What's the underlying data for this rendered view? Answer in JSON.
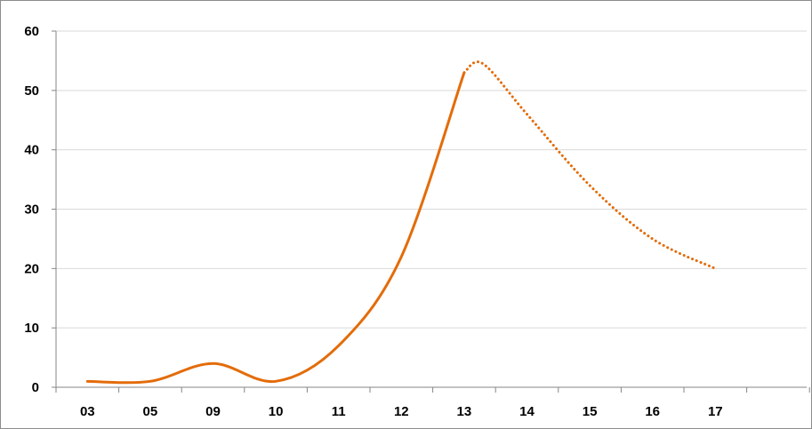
{
  "chart_data": {
    "type": "line",
    "categories": [
      "03",
      "05",
      "09",
      "10",
      "11",
      "12",
      "13",
      "14",
      "15",
      "16",
      "17"
    ],
    "series": [
      {
        "style": "solid",
        "color": "#E36C0A",
        "points": [
          {
            "x": "03",
            "y": 1
          },
          {
            "x": "05",
            "y": 1
          },
          {
            "x": "09",
            "y": 4
          },
          {
            "x": "10",
            "y": 1
          },
          {
            "x": "11",
            "y": 7
          },
          {
            "x": "12",
            "y": 22
          },
          {
            "x": "13",
            "y": 53
          }
        ]
      },
      {
        "style": "dotted",
        "color": "#E36C0A",
        "points": [
          {
            "x": "13",
            "y": 53
          },
          {
            "x": "13.3",
            "y": 54.5
          },
          {
            "x": "14",
            "y": 46
          },
          {
            "x": "15",
            "y": 34
          },
          {
            "x": "16",
            "y": 25
          },
          {
            "x": "17",
            "y": 20
          }
        ]
      }
    ],
    "y_ticks": [
      "0",
      "10",
      "20",
      "30",
      "40",
      "50",
      "60"
    ],
    "ylim": [
      0,
      60
    ],
    "title": "",
    "xlabel": "",
    "ylabel": "",
    "grid": true,
    "legend": "none"
  }
}
